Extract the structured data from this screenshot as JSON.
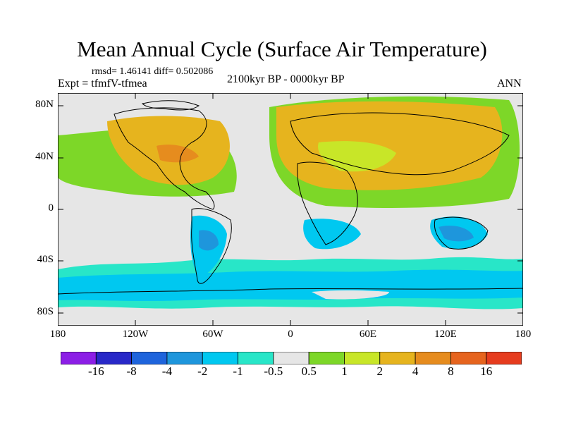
{
  "title": "Mean Annual Cycle (Surface Air Temperature)",
  "stats": "rmsd= 1.46141 diff= 0.502086",
  "experiment": "Expt = tfmfV-tfmea",
  "period": "2100kyr BP - 0000kyr BP",
  "season": "ANN",
  "lat_labels": [
    "80N",
    "40N",
    "0",
    "40S",
    "80S"
  ],
  "lon_labels": [
    "180",
    "120W",
    "60W",
    "0",
    "60E",
    "120E",
    "180"
  ],
  "colorbar": {
    "colors": [
      "#8c1ee6",
      "#2828c8",
      "#1e64dc",
      "#1e96dc",
      "#00c8f0",
      "#28e6c8",
      "#e6e6e6",
      "#7dd728",
      "#c8e628",
      "#e6b41e",
      "#e68c1e",
      "#e6641e",
      "#e63c1e"
    ],
    "labels": [
      "-16",
      "-8",
      "-4",
      "-2",
      "-1",
      "-0.5",
      "0.5",
      "1",
      "2",
      "4",
      "8",
      "16"
    ]
  }
}
